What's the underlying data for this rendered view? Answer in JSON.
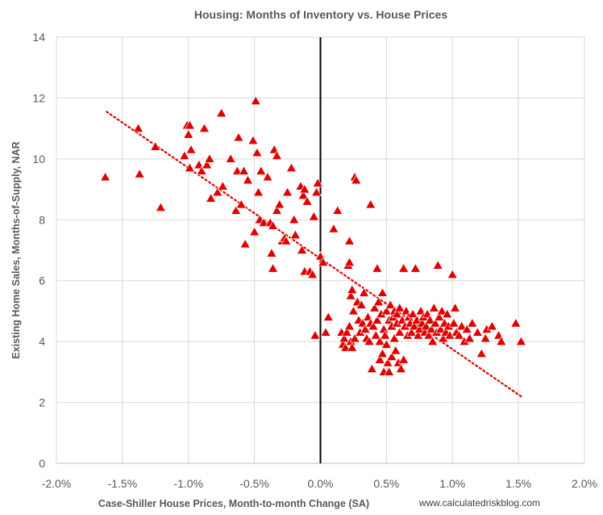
{
  "chart_data": {
    "type": "scatter",
    "title": "Housing: Months of Inventory vs. House Prices",
    "xlabel": "Case-Shiller House Prices, Month-to-month Change (SA)",
    "ylabel": "Existing Home Sales, Months-of-Supply, NAR",
    "credit": "www.calculatedriskblog.com",
    "xlim": [
      -0.02,
      0.02
    ],
    "ylim": [
      0,
      14
    ],
    "x_ticks": [
      -0.02,
      -0.015,
      -0.01,
      -0.005,
      0,
      0.005,
      0.01,
      0.015,
      0.02
    ],
    "x_tick_labels": [
      "-2.0%",
      "-1.5%",
      "-1.0%",
      "-0.5%",
      "0.0%",
      "0.5%",
      "1.0%",
      "1.5%",
      "2.0%"
    ],
    "y_ticks": [
      0,
      2,
      4,
      6,
      8,
      10,
      12,
      14
    ],
    "y_tick_labels": [
      "0",
      "2",
      "4",
      "6",
      "8",
      "10",
      "12",
      "14"
    ],
    "grid": true,
    "vertical_reference_line_x": 0,
    "marker": "triangle",
    "marker_color": "#e00000",
    "trendline": {
      "style": "dotted",
      "color": "#e00000",
      "points": [
        [
          -0.0162,
          11.55
        ],
        [
          0.0152,
          2.2
        ]
      ]
    },
    "points": [
      [
        -0.0163,
        9.4
      ],
      [
        -0.0138,
        11.0
      ],
      [
        -0.0137,
        9.5
      ],
      [
        -0.0125,
        10.4
      ],
      [
        -0.0121,
        8.4
      ],
      [
        -0.0103,
        10.1
      ],
      [
        -0.0101,
        11.1
      ],
      [
        -0.0099,
        11.1
      ],
      [
        -0.01,
        10.8
      ],
      [
        -0.0098,
        10.3
      ],
      [
        -0.0099,
        9.7
      ],
      [
        -0.0092,
        9.8
      ],
      [
        -0.009,
        9.6
      ],
      [
        -0.0088,
        11.0
      ],
      [
        -0.0086,
        9.8
      ],
      [
        -0.0084,
        10.0
      ],
      [
        -0.0083,
        8.7
      ],
      [
        -0.0078,
        8.9
      ],
      [
        -0.0075,
        11.5
      ],
      [
        -0.0074,
        9.1
      ],
      [
        -0.0068,
        10.0
      ],
      [
        -0.0064,
        8.3
      ],
      [
        -0.0063,
        9.6
      ],
      [
        -0.0062,
        10.7
      ],
      [
        -0.006,
        8.5
      ],
      [
        -0.0058,
        9.6
      ],
      [
        -0.0057,
        7.2
      ],
      [
        -0.0055,
        9.3
      ],
      [
        -0.0051,
        10.6
      ],
      [
        -0.005,
        7.6
      ],
      [
        -0.0049,
        11.9
      ],
      [
        -0.0048,
        10.2
      ],
      [
        -0.0047,
        8.9
      ],
      [
        -0.0045,
        9.6
      ],
      [
        -0.0046,
        8.0
      ],
      [
        -0.0043,
        7.9
      ],
      [
        -0.004,
        9.4
      ],
      [
        -0.0038,
        7.9
      ],
      [
        -0.0036,
        7.8
      ],
      [
        -0.0037,
        6.9
      ],
      [
        -0.0036,
        6.4
      ],
      [
        -0.0035,
        10.3
      ],
      [
        -0.0033,
        10.1
      ],
      [
        -0.0033,
        8.3
      ],
      [
        -0.0031,
        8.5
      ],
      [
        -0.0029,
        7.3
      ],
      [
        -0.0027,
        7.4
      ],
      [
        -0.0026,
        7.3
      ],
      [
        -0.0025,
        8.9
      ],
      [
        -0.0022,
        9.7
      ],
      [
        -0.002,
        8.0
      ],
      [
        -0.0019,
        7.5
      ],
      [
        -0.0015,
        9.1
      ],
      [
        -0.0014,
        7.0
      ],
      [
        -0.0012,
        6.3
      ],
      [
        -0.0013,
        8.8
      ],
      [
        -0.0012,
        9.0
      ],
      [
        -0.001,
        8.6
      ],
      [
        -0.0008,
        6.3
      ],
      [
        -0.0006,
        6.2
      ],
      [
        -0.0005,
        8.1
      ],
      [
        -0.0003,
        8.9
      ],
      [
        -0.0004,
        4.2
      ],
      [
        -0.0002,
        9.2
      ],
      [
        0.0,
        6.8
      ],
      [
        0.0002,
        6.6
      ],
      [
        0.0004,
        4.3
      ],
      [
        0.0006,
        4.8
      ],
      [
        0.001,
        7.7
      ],
      [
        0.0013,
        8.3
      ],
      [
        0.0016,
        4.3
      ],
      [
        0.0017,
        3.9
      ],
      [
        0.0018,
        4.1
      ],
      [
        0.0019,
        3.8
      ],
      [
        0.002,
        4.3
      ],
      [
        0.0021,
        6.5
      ],
      [
        0.0022,
        6.6
      ],
      [
        0.0022,
        7.3
      ],
      [
        0.0022,
        4.5
      ],
      [
        0.0023,
        4.0
      ],
      [
        0.0023,
        5.5
      ],
      [
        0.0024,
        5.7
      ],
      [
        0.0024,
        3.8
      ],
      [
        0.0025,
        5.0
      ],
      [
        0.0026,
        4.1
      ],
      [
        0.0026,
        9.4
      ],
      [
        0.0027,
        9.3
      ],
      [
        0.0028,
        5.3
      ],
      [
        0.0029,
        4.7
      ],
      [
        0.003,
        4.3
      ],
      [
        0.0031,
        5.2
      ],
      [
        0.0032,
        4.6
      ],
      [
        0.0033,
        5.6
      ],
      [
        0.0034,
        4.4
      ],
      [
        0.0035,
        4.1
      ],
      [
        0.0036,
        4.8
      ],
      [
        0.0037,
        4.0
      ],
      [
        0.0038,
        4.6
      ],
      [
        0.0038,
        8.5
      ],
      [
        0.0039,
        3.1
      ],
      [
        0.004,
        4.5
      ],
      [
        0.0041,
        5.1
      ],
      [
        0.0042,
        4.2
      ],
      [
        0.0043,
        6.4
      ],
      [
        0.0043,
        4.7
      ],
      [
        0.0044,
        5.3
      ],
      [
        0.0045,
        4.0
      ],
      [
        0.0045,
        3.4
      ],
      [
        0.0046,
        4.9
      ],
      [
        0.0047,
        5.6
      ],
      [
        0.0047,
        3.6
      ],
      [
        0.0048,
        4.4
      ],
      [
        0.0048,
        3.0
      ],
      [
        0.0049,
        4.2
      ],
      [
        0.005,
        5.0
      ],
      [
        0.005,
        3.9
      ],
      [
        0.0051,
        3.3
      ],
      [
        0.0052,
        4.7
      ],
      [
        0.0052,
        3.0
      ],
      [
        0.0053,
        5.2
      ],
      [
        0.0054,
        4.5
      ],
      [
        0.0054,
        3.5
      ],
      [
        0.0055,
        4.8
      ],
      [
        0.0056,
        4.1
      ],
      [
        0.0056,
        5.0
      ],
      [
        0.0057,
        3.7
      ],
      [
        0.0058,
        4.6
      ],
      [
        0.0058,
        4.9
      ],
      [
        0.0059,
        3.3
      ],
      [
        0.006,
        4.3
      ],
      [
        0.006,
        5.1
      ],
      [
        0.0061,
        3.1
      ],
      [
        0.0062,
        4.7
      ],
      [
        0.0063,
        3.4
      ],
      [
        0.0063,
        6.4
      ],
      [
        0.0064,
        4.5
      ],
      [
        0.0065,
        5.0
      ],
      [
        0.0066,
        4.2
      ],
      [
        0.0067,
        4.8
      ],
      [
        0.0068,
        4.6
      ],
      [
        0.0069,
        4.3
      ],
      [
        0.007,
        4.9
      ],
      [
        0.0071,
        4.5
      ],
      [
        0.0072,
        6.4
      ],
      [
        0.0073,
        4.7
      ],
      [
        0.0074,
        4.2
      ],
      [
        0.0075,
        4.4
      ],
      [
        0.0076,
        5.0
      ],
      [
        0.0077,
        4.6
      ],
      [
        0.0078,
        4.8
      ],
      [
        0.0079,
        4.3
      ],
      [
        0.008,
        4.5
      ],
      [
        0.0081,
        4.9
      ],
      [
        0.0082,
        4.2
      ],
      [
        0.0083,
        4.7
      ],
      [
        0.0084,
        4.4
      ],
      [
        0.0085,
        4.0
      ],
      [
        0.0086,
        5.1
      ],
      [
        0.0087,
        4.6
      ],
      [
        0.0088,
        4.3
      ],
      [
        0.0089,
        6.5
      ],
      [
        0.009,
        4.8
      ],
      [
        0.0091,
        4.4
      ],
      [
        0.0092,
        5.0
      ],
      [
        0.0093,
        4.1
      ],
      [
        0.0094,
        4.6
      ],
      [
        0.0095,
        4.3
      ],
      [
        0.0096,
        4.9
      ],
      [
        0.0097,
        4.5
      ],
      [
        0.0098,
        4.2
      ],
      [
        0.01,
        6.2
      ],
      [
        0.0101,
        4.6
      ],
      [
        0.0102,
        5.1
      ],
      [
        0.0103,
        4.3
      ],
      [
        0.0105,
        4.2
      ],
      [
        0.0107,
        4.5
      ],
      [
        0.0109,
        4.0
      ],
      [
        0.0111,
        4.4
      ],
      [
        0.0113,
        4.1
      ],
      [
        0.0115,
        4.6
      ],
      [
        0.0119,
        4.3
      ],
      [
        0.0122,
        3.6
      ],
      [
        0.0126,
        4.4
      ],
      [
        0.0125,
        4.1
      ],
      [
        0.013,
        4.5
      ],
      [
        0.0135,
        4.2
      ],
      [
        0.0137,
        4.0
      ],
      [
        0.0148,
        4.6
      ],
      [
        0.0152,
        4.0
      ]
    ]
  }
}
